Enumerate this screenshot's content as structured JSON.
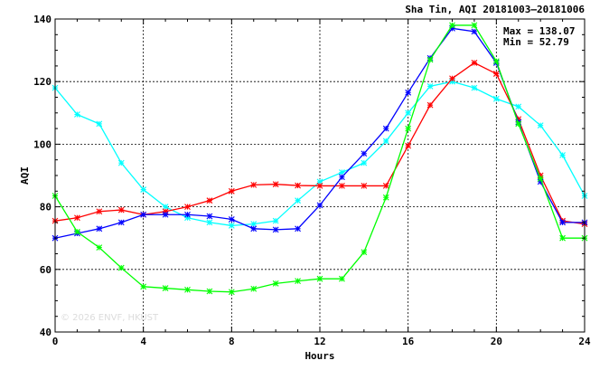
{
  "chart_data": {
    "type": "line",
    "title": "Sha Tin, AQI 20181003—20181006",
    "xlabel": "Hours",
    "ylabel": "AQI",
    "xlim": [
      0,
      24
    ],
    "ylim": [
      40,
      140
    ],
    "xticks": [
      0,
      4,
      8,
      12,
      16,
      20,
      24
    ],
    "yticks": [
      40,
      60,
      80,
      100,
      120,
      140
    ],
    "grid": true,
    "stats": {
      "max_label": "Max = 138.07",
      "min_label": "Min =  52.79"
    },
    "watermark": "© 2026  ENVF, HKUST",
    "x": [
      0,
      1,
      2,
      3,
      4,
      5,
      6,
      7,
      8,
      9,
      10,
      11,
      12,
      13,
      14,
      15,
      16,
      17,
      18,
      19,
      20,
      21,
      22,
      23,
      24
    ],
    "series": [
      {
        "color": "#00ffff",
        "values": [
          118,
          109.5,
          106.5,
          94,
          85.5,
          80,
          76.5,
          75,
          74,
          74.5,
          75.5,
          82,
          88,
          91,
          94,
          101,
          110,
          118.5,
          120,
          118,
          114.5,
          112,
          106,
          96.5,
          83.5
        ]
      },
      {
        "color": "#ff0000",
        "values": [
          75.5,
          76.5,
          78.5,
          79,
          77.5,
          78.5,
          80,
          82,
          85,
          87,
          87.2,
          86.8,
          86.7,
          86.7,
          86.7,
          86.7,
          99.5,
          112.5,
          121,
          126,
          122.5,
          108,
          90,
          75.5,
          74.5
        ]
      },
      {
        "color": "#0000ff",
        "values": [
          70,
          71.5,
          73,
          75,
          77.5,
          77.5,
          77.5,
          77,
          76,
          73,
          72.7,
          73,
          80.5,
          89.5,
          97,
          105,
          116.5,
          127.5,
          137,
          136,
          126,
          107,
          88,
          75,
          75
        ]
      },
      {
        "color": "#00ff00",
        "values": [
          83.5,
          72,
          67,
          60.5,
          54.5,
          54,
          53.5,
          53,
          52.8,
          53.8,
          55.5,
          56.3,
          57,
          57,
          65.5,
          83,
          105,
          127,
          138,
          138,
          126.5,
          106.5,
          89,
          70,
          70
        ]
      }
    ]
  }
}
